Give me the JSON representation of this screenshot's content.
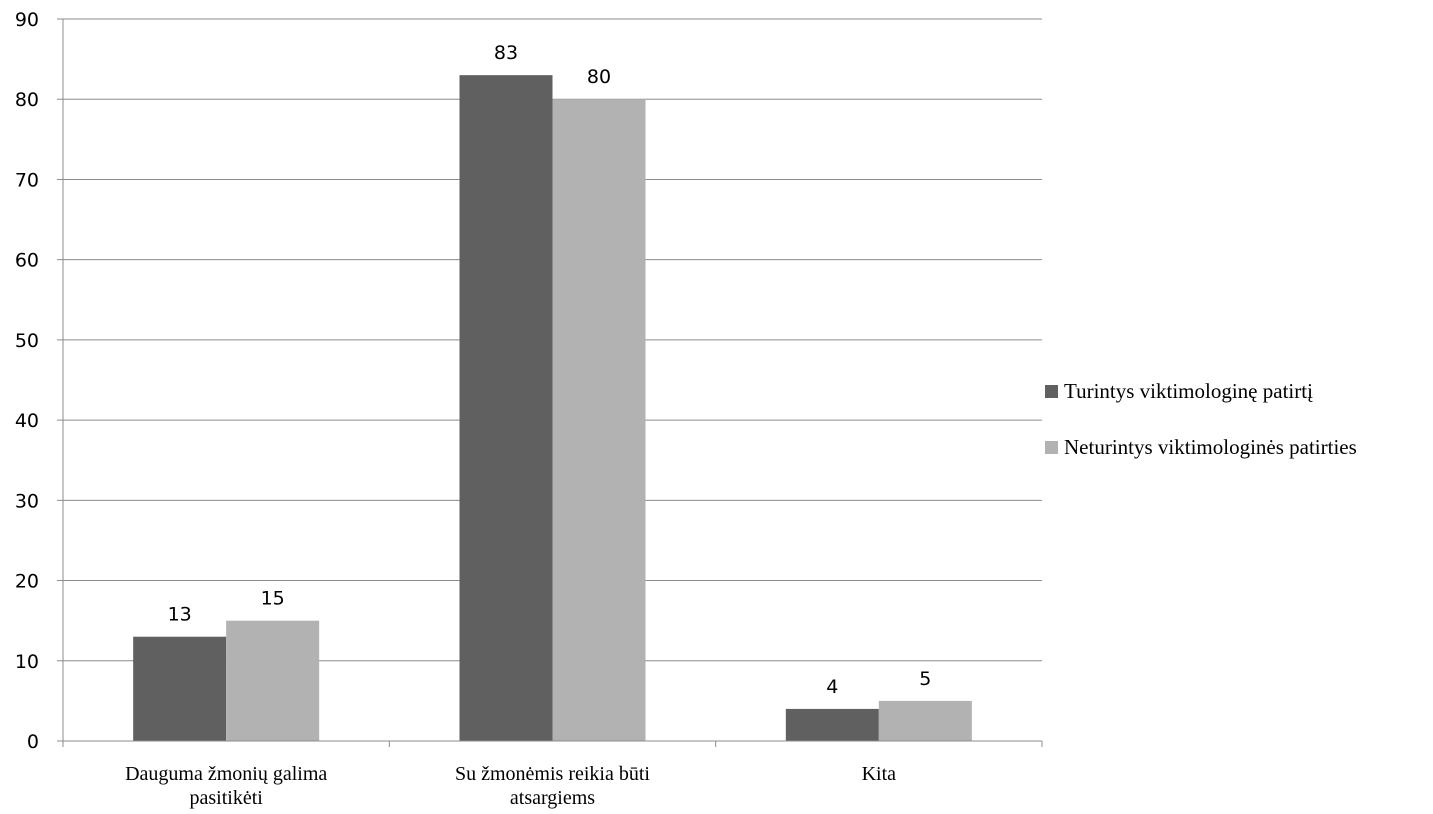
{
  "chart_data": {
    "type": "bar",
    "title": "",
    "xlabel": "",
    "ylabel": "",
    "ylim": [
      0,
      90
    ],
    "yticks": [
      0,
      10,
      20,
      30,
      40,
      50,
      60,
      70,
      80,
      90
    ],
    "grid": true,
    "legend_position": "right",
    "categories": [
      [
        "Dauguma žmonių galima",
        "pasitikėti"
      ],
      [
        "Su žmonėmis reikia būti",
        "atsargiems"
      ],
      [
        "Kita"
      ]
    ],
    "series": [
      {
        "name": "Turintys viktimologinę patirtį",
        "color": "#606060",
        "values": [
          13,
          83,
          4
        ]
      },
      {
        "name": "Neturintys viktimologinės patirties",
        "color": "#b2b2b2",
        "values": [
          15,
          80,
          5
        ]
      }
    ]
  }
}
